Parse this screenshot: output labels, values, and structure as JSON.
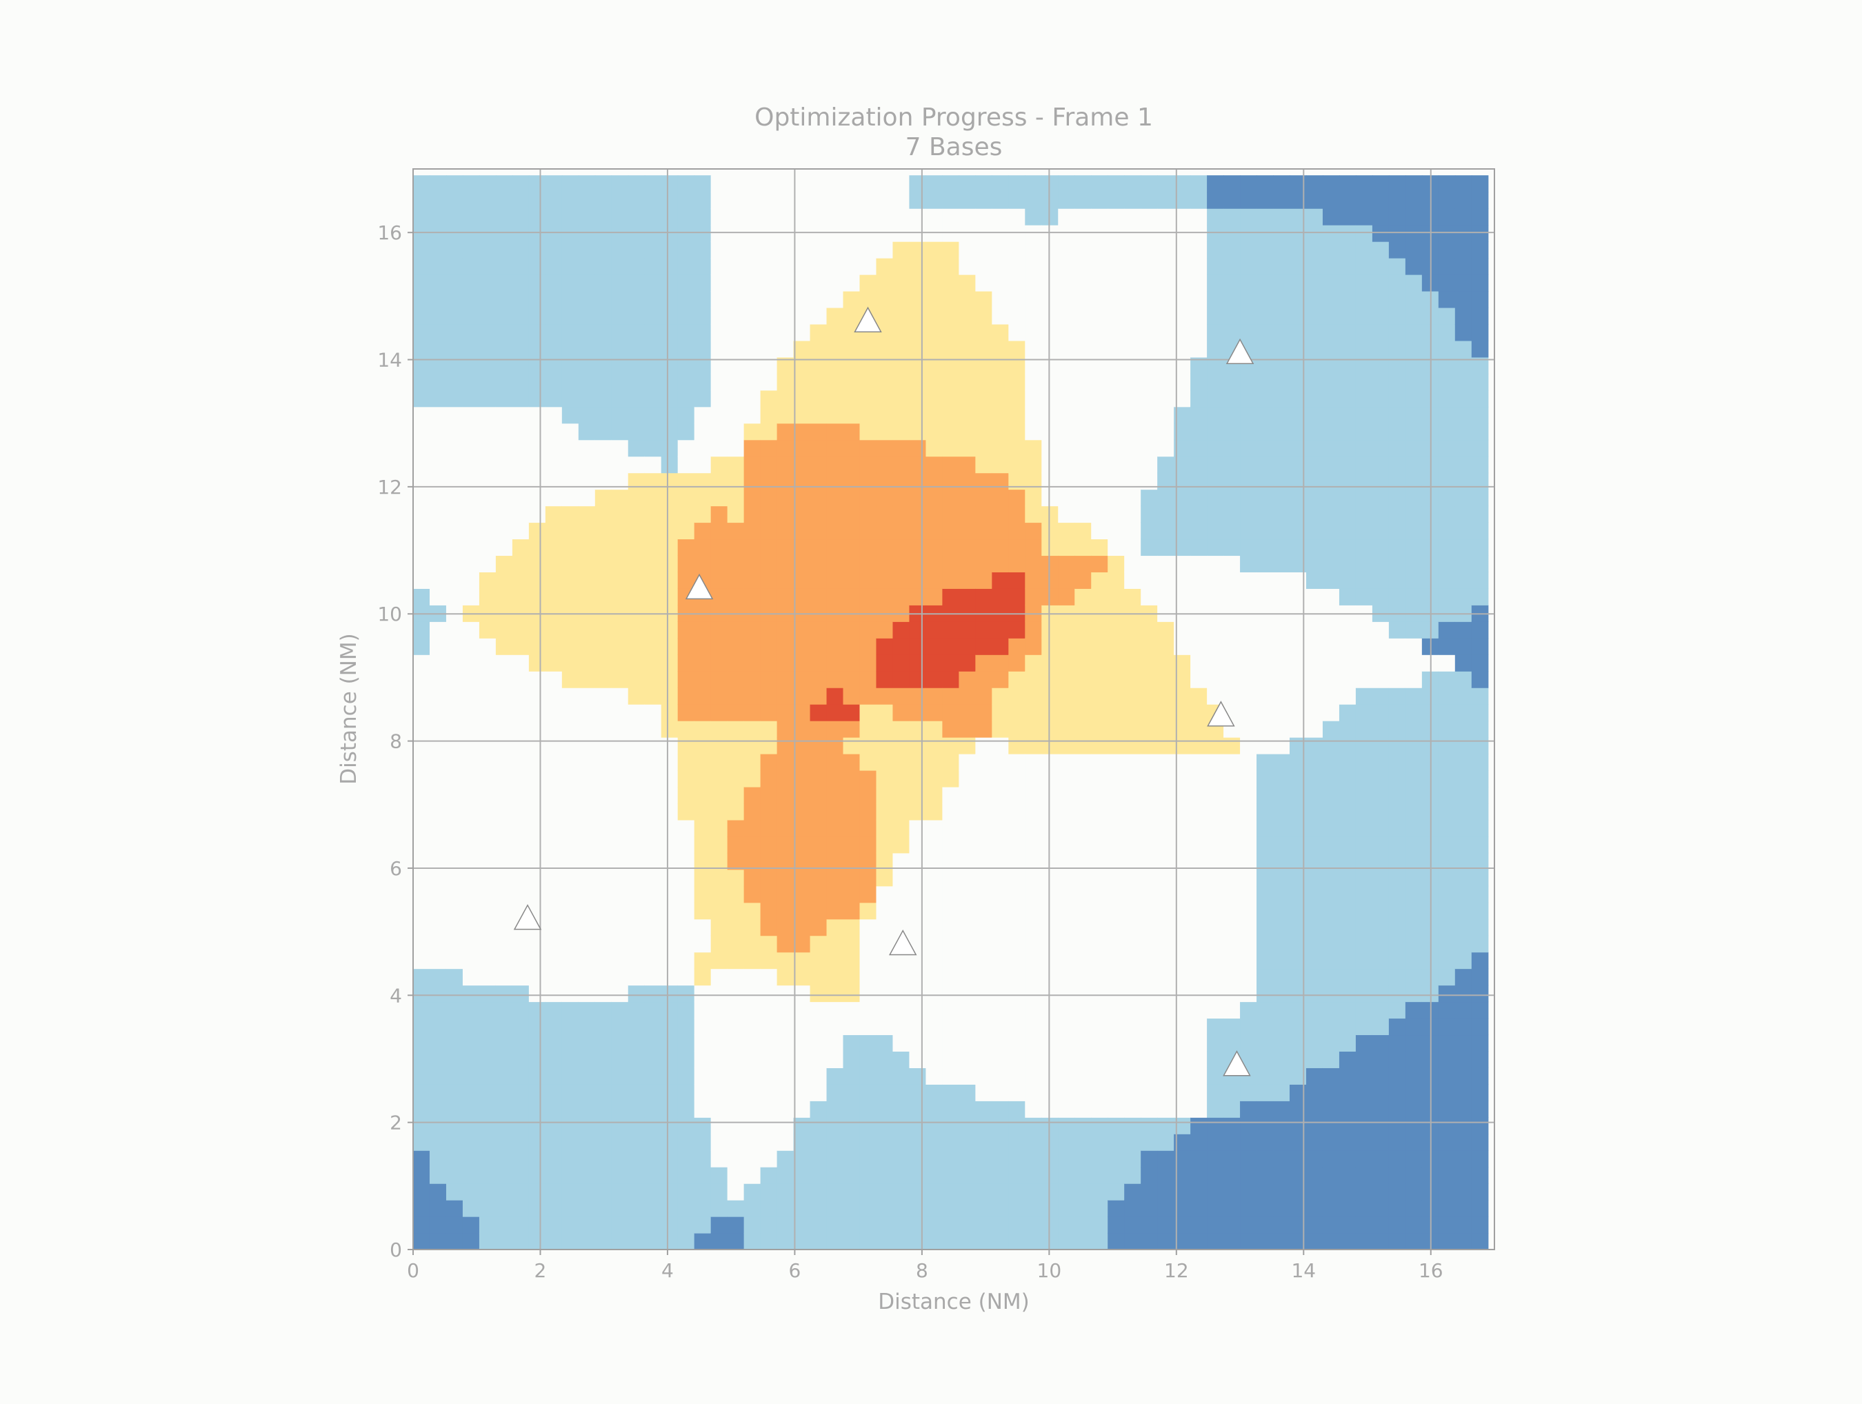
{
  "chart_data": {
    "type": "heatmap",
    "title": "Optimization Progress - Frame 1",
    "subtitle": "7 Bases",
    "xlabel": "Distance (NM)",
    "ylabel": "Distance (NM)",
    "xlim": [
      0,
      17
    ],
    "ylim": [
      0,
      17
    ],
    "xticks": [
      "0",
      "2",
      "4",
      "6",
      "8",
      "10",
      "12",
      "14",
      "16"
    ],
    "yticks": [
      "0",
      "2",
      "4",
      "6",
      "8",
      "10",
      "12",
      "14",
      "16"
    ],
    "grid": true,
    "cell_size_nm": 0.26,
    "levels": [
      {
        "level": 1,
        "color": "#5a8bbf",
        "description": "dark blue"
      },
      {
        "level": 2,
        "color": "#a5d2e4",
        "description": "light blue"
      },
      {
        "level": 3,
        "color": "#fbfcfa",
        "description": "white"
      },
      {
        "level": 4,
        "color": "#fee89a",
        "description": "pale yellow"
      },
      {
        "level": 5,
        "color": "#fba55a",
        "description": "orange"
      },
      {
        "level": 6,
        "color": "#e04b32",
        "description": "red"
      }
    ],
    "regions": [
      {
        "level": 2,
        "polygon": [
          [
            0,
            0
          ],
          [
            17,
            0
          ],
          [
            17,
            17
          ],
          [
            0,
            17
          ]
        ]
      },
      {
        "level": 1,
        "polygon": [
          [
            12.3,
            0
          ],
          [
            17,
            0
          ],
          [
            17,
            4.9
          ],
          [
            16.6,
            4.6
          ],
          [
            16,
            4
          ],
          [
            15.5,
            3.6
          ],
          [
            14.5,
            3
          ],
          [
            14,
            2.6
          ],
          [
            13.2,
            2.3
          ],
          [
            12.3,
            2
          ]
        ]
      },
      {
        "level": 1,
        "polygon": [
          [
            10.8,
            0
          ],
          [
            12.3,
            0
          ],
          [
            12.3,
            2
          ],
          [
            11.5,
            1.4
          ],
          [
            11.2,
            1
          ],
          [
            10.8,
            0.3
          ]
        ]
      },
      {
        "level": 1,
        "polygon": [
          [
            0,
            0
          ],
          [
            1.3,
            0
          ],
          [
            1,
            0.3
          ],
          [
            0.6,
            0.8
          ],
          [
            0.3,
            1.3
          ],
          [
            0,
            1.6
          ]
        ]
      },
      {
        "level": 1,
        "polygon": [
          [
            4.4,
            0
          ],
          [
            5.2,
            0
          ],
          [
            5.2,
            0.5
          ],
          [
            4.4,
            0.3
          ]
        ]
      },
      {
        "level": 1,
        "polygon": [
          [
            12.6,
            17
          ],
          [
            17,
            17
          ],
          [
            17,
            13.7
          ],
          [
            16.6,
            14.3
          ],
          [
            16,
            15
          ],
          [
            15.2,
            15.9
          ],
          [
            14.2,
            16.3
          ],
          [
            12.6,
            16.5
          ]
        ]
      },
      {
        "level": 1,
        "polygon": [
          [
            15.8,
            9.3
          ],
          [
            16.5,
            10
          ],
          [
            17,
            10.3
          ],
          [
            17,
            8.5
          ],
          [
            16.5,
            9
          ]
        ]
      },
      {
        "level": 3,
        "polygon": [
          [
            0,
            13.3
          ],
          [
            2,
            13.3
          ],
          [
            2.8,
            12.8
          ],
          [
            4,
            12.3
          ],
          [
            4.4,
            12.8
          ],
          [
            4.7,
            13.8
          ],
          [
            4.7,
            17
          ],
          [
            7.5,
            17
          ],
          [
            8,
            16.4
          ],
          [
            8.8,
            16.4
          ],
          [
            9.8,
            16.2
          ],
          [
            12.6,
            16.5
          ],
          [
            12.6,
            15
          ],
          [
            12.2,
            13.5
          ],
          [
            11.6,
            12
          ],
          [
            11.3,
            11
          ],
          [
            12.5,
            10.9
          ],
          [
            14,
            10.6
          ],
          [
            15,
            10
          ],
          [
            15.8,
            9.5
          ],
          [
            16.5,
            9.3
          ],
          [
            16,
            9
          ],
          [
            15,
            8.8
          ],
          [
            14,
            8
          ],
          [
            13.3,
            7.8
          ],
          [
            13.3,
            4
          ],
          [
            12.5,
            3.5
          ],
          [
            12.5,
            2
          ],
          [
            11.5,
            2
          ],
          [
            10,
            2
          ],
          [
            9.5,
            2.3
          ],
          [
            8.8,
            2.5
          ],
          [
            8,
            2.8
          ],
          [
            7.5,
            3.3
          ],
          [
            6.8,
            3.3
          ],
          [
            6.5,
            2.5
          ],
          [
            6,
            1.8
          ],
          [
            5.4,
            1
          ],
          [
            5,
            0.8
          ],
          [
            4.6,
            1.7
          ],
          [
            4.4,
            3
          ],
          [
            4.4,
            4.2
          ],
          [
            4,
            4.2
          ],
          [
            3,
            3.9
          ],
          [
            2,
            3.9
          ],
          [
            1.6,
            4.2
          ],
          [
            0,
            4.4
          ],
          [
            0,
            9.3
          ],
          [
            0.5,
            10
          ],
          [
            0,
            10.6
          ]
        ]
      },
      {
        "level": 4,
        "polygon": [
          [
            4.5,
            4.2
          ],
          [
            5,
            4.4
          ],
          [
            5.8,
            4.3
          ],
          [
            6.2,
            4
          ],
          [
            6.5,
            3.8
          ],
          [
            7,
            3.8
          ],
          [
            7,
            5
          ],
          [
            7.5,
            5.8
          ],
          [
            7.8,
            6.5
          ],
          [
            8.3,
            7
          ],
          [
            8.7,
            7.7
          ],
          [
            9,
            8
          ],
          [
            10,
            7.8
          ],
          [
            12.5,
            7.8
          ],
          [
            13,
            7.9
          ],
          [
            12.6,
            8.5
          ],
          [
            12.3,
            9
          ],
          [
            12,
            9.7
          ],
          [
            11.6,
            10
          ],
          [
            11.2,
            10.7
          ],
          [
            10.9,
            11.2
          ],
          [
            10.3,
            11.5
          ],
          [
            9.8,
            12
          ],
          [
            9.7,
            13.3
          ],
          [
            9.5,
            14.3
          ],
          [
            9,
            15
          ],
          [
            8.5,
            15.7
          ],
          [
            8.1,
            16
          ],
          [
            7.6,
            15.8
          ],
          [
            7.1,
            15.3
          ],
          [
            6.8,
            15
          ],
          [
            6.3,
            14.5
          ],
          [
            5.9,
            14
          ],
          [
            5.5,
            13.3
          ],
          [
            5.2,
            12.6
          ],
          [
            4.6,
            12.3
          ],
          [
            4,
            12.3
          ],
          [
            3,
            11.9
          ],
          [
            2,
            11.5
          ],
          [
            1.6,
            11
          ],
          [
            1,
            10.6
          ],
          [
            0.9,
            10
          ],
          [
            1,
            9.6
          ],
          [
            1.6,
            9.4
          ],
          [
            2.1,
            9
          ],
          [
            3,
            8.8
          ],
          [
            4,
            8.5
          ],
          [
            4.1,
            7.3
          ],
          [
            4.3,
            6.8
          ],
          [
            4.4,
            6
          ],
          [
            4.6,
            5
          ]
        ]
      },
      {
        "level": 5,
        "polygon": [
          [
            4.1,
            8.3
          ],
          [
            5.5,
            8.3
          ],
          [
            6.5,
            8.5
          ],
          [
            7.3,
            8.5
          ],
          [
            8,
            8.3
          ],
          [
            8.5,
            8.1
          ],
          [
            9,
            8
          ],
          [
            9,
            8.7
          ],
          [
            9.8,
            9.3
          ],
          [
            9.8,
            10
          ],
          [
            10.3,
            10.2
          ],
          [
            11,
            10.8
          ],
          [
            10.3,
            10.9
          ],
          [
            9.8,
            11
          ],
          [
            9.7,
            11.8
          ],
          [
            9.2,
            12.2
          ],
          [
            8.5,
            12.5
          ],
          [
            7.5,
            12.7
          ],
          [
            7,
            12.9
          ],
          [
            5.8,
            12.9
          ],
          [
            5.2,
            12.6
          ],
          [
            5.3,
            11.5
          ],
          [
            4.9,
            11.6
          ],
          [
            4.4,
            11.5
          ],
          [
            4.1,
            10.5
          ]
        ]
      },
      {
        "level": 5,
        "polygon": [
          [
            5.7,
            4.7
          ],
          [
            6.1,
            4.7
          ],
          [
            6.5,
            5
          ],
          [
            7,
            5.3
          ],
          [
            7.3,
            5.7
          ],
          [
            7.3,
            7.5
          ],
          [
            6.8,
            8
          ],
          [
            6.9,
            8.2
          ],
          [
            5.8,
            8.2
          ],
          [
            5.5,
            7.7
          ],
          [
            5.2,
            7
          ],
          [
            4.9,
            6.2
          ],
          [
            5.2,
            5.7
          ],
          [
            5.5,
            5.2
          ]
        ]
      },
      {
        "level": 6,
        "polygon": [
          [
            7.2,
            9.1
          ],
          [
            7.5,
            8.8
          ],
          [
            8.2,
            8.8
          ],
          [
            8.7,
            9
          ],
          [
            9,
            9.3
          ],
          [
            9.6,
            9.7
          ],
          [
            9.6,
            10.6
          ],
          [
            9.2,
            10.6
          ],
          [
            8.6,
            10.3
          ],
          [
            8,
            10.2
          ],
          [
            7.5,
            9.8
          ],
          [
            7.2,
            9.5
          ]
        ]
      },
      {
        "level": 6,
        "polygon": [
          [
            6.2,
            8.4
          ],
          [
            7,
            8.4
          ],
          [
            7,
            8.6
          ],
          [
            6.7,
            8.8
          ],
          [
            6.4,
            8.6
          ]
        ]
      }
    ],
    "markers": [
      {
        "label": "base",
        "shape": "triangle",
        "x": 1.8,
        "y": 5.2
      },
      {
        "label": "base",
        "shape": "triangle",
        "x": 4.5,
        "y": 10.4
      },
      {
        "label": "base",
        "shape": "triangle",
        "x": 7.15,
        "y": 14.6
      },
      {
        "label": "base",
        "shape": "triangle",
        "x": 7.7,
        "y": 4.8
      },
      {
        "label": "base",
        "shape": "triangle",
        "x": 13.0,
        "y": 14.1
      },
      {
        "label": "base",
        "shape": "triangle",
        "x": 12.7,
        "y": 8.4
      },
      {
        "label": "base",
        "shape": "triangle",
        "x": 12.95,
        "y": 2.9
      }
    ],
    "colors": {
      "background": "#fbfcfa",
      "grid": "#b0b0b0",
      "axis": "#a0a0a0",
      "text": "#a8a8a8",
      "marker_fill": "#ffffff",
      "marker_stroke": "#888888"
    }
  }
}
